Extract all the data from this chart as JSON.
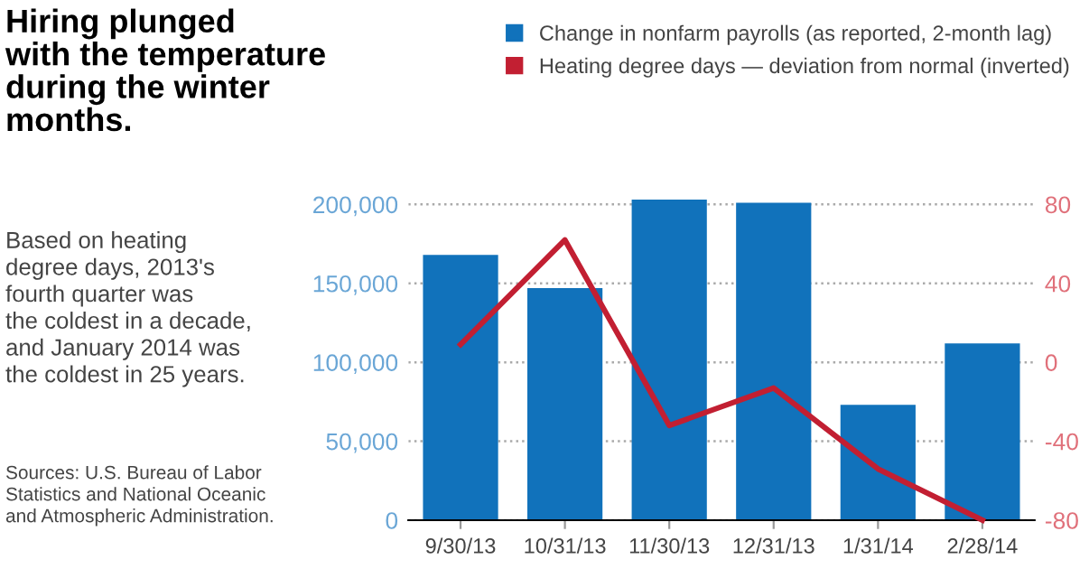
{
  "chart_data": {
    "type": "bar",
    "title": "Hiring plunged\nwith the temperature\nduring the winter\nmonths.",
    "annotations": [
      "Based on heating\ndegree days, 2013's\nfourth quarter was\nthe coldest in a decade,\nand January 2014 was\nthe coldest in 25 years.",
      "Sources: U.S. Bureau of Labor\nStatistics and National Oceanic\nand Atmospheric Administration."
    ],
    "categories": [
      "9/30/13",
      "10/31/13",
      "11/30/13",
      "12/31/13",
      "1/31/14",
      "2/28/14"
    ],
    "series": [
      {
        "name": "Change in nonfarm payrolls (as reported, 2-month lag)",
        "color": "#1172bb",
        "values": [
          168000,
          147000,
          203000,
          201000,
          73000,
          112000
        ]
      },
      {
        "name": "Heating degree days — deviation from normal (inverted)",
        "color": "#c21f32",
        "type": "line",
        "axis": "y2",
        "values": [
          9,
          62,
          -32,
          -13,
          -54,
          -80
        ]
      }
    ],
    "ylim": [
      0,
      205000
    ],
    "yticks": [
      0,
      {
        "value": 50000,
        "label": "50,000"
      },
      {
        "value": 100000,
        "label": "100,000"
      },
      {
        "value": 150000,
        "label": "150,000"
      },
      {
        "value": 200000,
        "label": "200,000"
      }
    ],
    "y2lim": [
      -80,
      84
    ],
    "y2ticks": [
      -80,
      -40,
      0,
      40,
      80
    ],
    "grid": "y",
    "legend": "top right",
    "marker": "none",
    "line_style": "solid"
  }
}
